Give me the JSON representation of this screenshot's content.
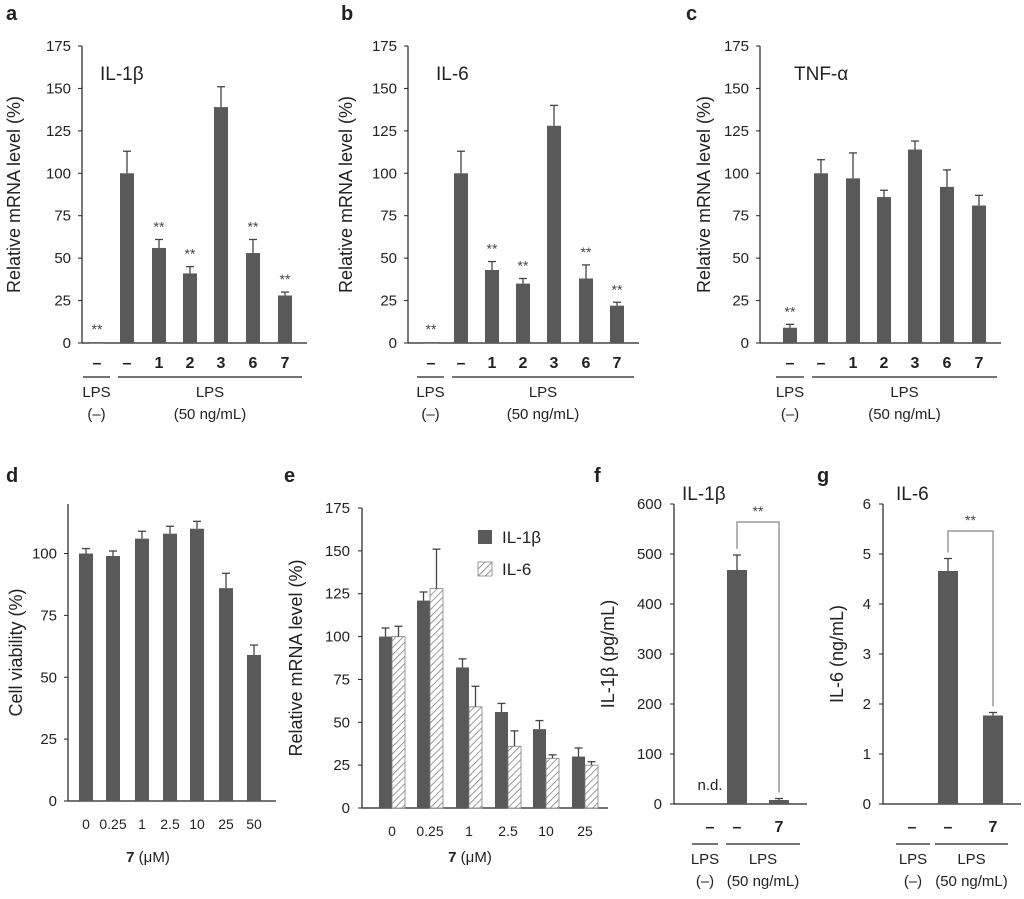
{
  "colors": {
    "bar": "#595959",
    "axis": "#222222",
    "bracket": "#9a9a9a",
    "hatch": "#808080"
  },
  "chart_data": [
    {
      "panel": "a",
      "type": "bar",
      "title": "IL-1β",
      "ylabel": "Relative mRNA level (%)",
      "ylim": [
        0,
        175
      ],
      "yticks": [
        "0",
        "25",
        "50",
        "75",
        "100",
        "125",
        "150",
        "175"
      ],
      "categories": [
        "–",
        "–",
        "1",
        "2",
        "3",
        "6",
        "7"
      ],
      "values": [
        0.5,
        100,
        56,
        41,
        139,
        53,
        28
      ],
      "errors": [
        0,
        13,
        5,
        4,
        12,
        8,
        2
      ],
      "significance": [
        "**",
        "",
        "**",
        "**",
        "",
        "**",
        "**"
      ],
      "groups": [
        {
          "lines": [
            "LPS",
            "(–)"
          ]
        },
        {
          "lines": [
            "LPS",
            "(50 ng/mL)"
          ]
        }
      ]
    },
    {
      "panel": "b",
      "type": "bar",
      "title": "IL-6",
      "ylabel": "Relative mRNA level (%)",
      "ylim": [
        0,
        175
      ],
      "yticks": [
        "0",
        "25",
        "50",
        "75",
        "100",
        "125",
        "150",
        "175"
      ],
      "categories": [
        "–",
        "–",
        "1",
        "2",
        "3",
        "6",
        "7"
      ],
      "values": [
        0.5,
        100,
        43,
        35,
        128,
        38,
        22
      ],
      "errors": [
        0,
        13,
        5,
        3,
        12,
        8,
        2
      ],
      "significance": [
        "**",
        "",
        "**",
        "**",
        "",
        "**",
        "**"
      ],
      "groups": [
        {
          "lines": [
            "LPS",
            "(–)"
          ]
        },
        {
          "lines": [
            "LPS",
            "(50 ng/mL)"
          ]
        }
      ]
    },
    {
      "panel": "c",
      "type": "bar",
      "title": "TNF-α",
      "ylabel": "Relative mRNA level (%)",
      "ylim": [
        0,
        175
      ],
      "yticks": [
        "0",
        "25",
        "50",
        "75",
        "100",
        "125",
        "150",
        "175"
      ],
      "categories": [
        "–",
        "–",
        "1",
        "2",
        "3",
        "6",
        "7"
      ],
      "values": [
        9,
        100,
        97,
        86,
        114,
        92,
        81
      ],
      "errors": [
        2,
        8,
        15,
        4,
        5,
        10,
        6
      ],
      "significance": [
        "**",
        "",
        "",
        "",
        "",
        "",
        ""
      ],
      "groups": [
        {
          "lines": [
            "LPS",
            "(–)"
          ]
        },
        {
          "lines": [
            "LPS",
            "(50 ng/mL)"
          ]
        }
      ]
    },
    {
      "panel": "d",
      "type": "bar",
      "ylabel": "Cell viability (%)",
      "ylim": [
        0,
        120
      ],
      "yticks": [
        "0",
        "25",
        "50",
        "75",
        "100"
      ],
      "xlabel": {
        "bold": "7",
        "rest": " (μM)"
      },
      "categories": [
        "0",
        "0.25",
        "1",
        "2.5",
        "10",
        "25",
        "50"
      ],
      "values": [
        100,
        99,
        106,
        108,
        110,
        86,
        59
      ],
      "errors": [
        2,
        2,
        3,
        3,
        3,
        6,
        4
      ]
    },
    {
      "panel": "e",
      "type": "bar",
      "ylabel": "Relative mRNA level (%)",
      "ylim": [
        0,
        175
      ],
      "yticks": [
        "0",
        "25",
        "50",
        "75",
        "100",
        "125",
        "150",
        "175"
      ],
      "xlabel": {
        "bold": "7",
        "rest": " (μM)"
      },
      "categories": [
        "0",
        "0.25",
        "1",
        "2.5",
        "10",
        "25"
      ],
      "series": [
        {
          "name": "IL-1β",
          "values": [
            100,
            121,
            82,
            56,
            46,
            30
          ],
          "errors": [
            5,
            5,
            5,
            5,
            5,
            5
          ]
        },
        {
          "name": "IL-6",
          "values": [
            100,
            128,
            59,
            36,
            29,
            25
          ],
          "errors": [
            6,
            23,
            12,
            9,
            2,
            2
          ]
        }
      ]
    },
    {
      "panel": "f",
      "type": "bar",
      "title": "IL-1β",
      "ylabel": "IL-1β (pg/mL)",
      "ylim": [
        0,
        600
      ],
      "yticks": [
        "0",
        "100",
        "200",
        "300",
        "400",
        "500",
        "600"
      ],
      "categories": [
        "–",
        "–",
        "7"
      ],
      "values": [
        0,
        468,
        8
      ],
      "errors": [
        0,
        30,
        3
      ],
      "annotation": "n.d.",
      "significance": "**",
      "groups": [
        {
          "lines": [
            "LPS",
            "(–)"
          ]
        },
        {
          "lines": [
            "LPS",
            "(50 ng/mL)"
          ]
        }
      ]
    },
    {
      "panel": "g",
      "type": "bar",
      "title": "IL-6",
      "ylabel": "IL-6 (ng/mL)",
      "ylim": [
        0,
        6
      ],
      "yticks": [
        "0",
        "1",
        "2",
        "3",
        "4",
        "5",
        "6"
      ],
      "categories": [
        "–",
        "–",
        "7"
      ],
      "values": [
        0,
        4.66,
        1.77
      ],
      "errors": [
        0,
        0.25,
        0.06
      ],
      "significance": "**",
      "groups": [
        {
          "lines": [
            "LPS",
            "(–)"
          ]
        },
        {
          "lines": [
            "LPS",
            "(50 ng/mL)"
          ]
        }
      ]
    }
  ]
}
